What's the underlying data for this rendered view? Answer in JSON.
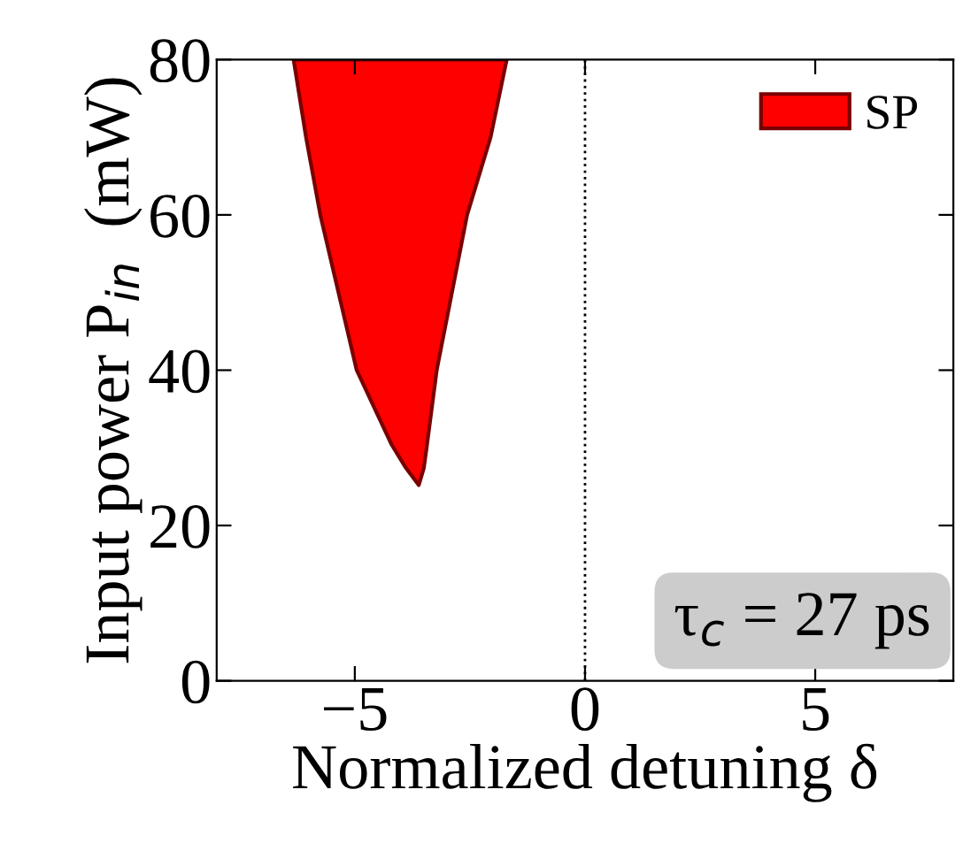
{
  "chart_data": {
    "type": "area",
    "xlabel": "Normalized detuning δ",
    "ylabel": "Input power P$_{in}$  (mW)",
    "xlim": [
      -8,
      8
    ],
    "ylim": [
      0,
      80
    ],
    "xticks": [
      {
        "value": -5,
        "label": "−5"
      },
      0,
      5
    ],
    "yticks": [
      0,
      20,
      40,
      60,
      80
    ],
    "series": [
      {
        "name": "SP",
        "color": "#ff0000",
        "x": [
          -6.33,
          -6.06,
          -5.75,
          -4.96,
          -4.2,
          -3.89,
          -3.61,
          -3.5,
          -3.44,
          -3.22,
          -2.56,
          -2.05,
          -1.7
        ],
        "values": [
          80,
          70,
          60,
          40,
          30.4,
          27.4,
          25.2,
          27.4,
          30,
          40,
          60,
          70,
          80
        ]
      }
    ],
    "ref_lines": [
      {
        "axis": "x",
        "value": 0,
        "line_style": "dotted",
        "color": "#000000"
      }
    ],
    "annotations": [
      "τ$_{c}$ = 27 ps"
    ],
    "legend": "top right",
    "grid": false
  }
}
